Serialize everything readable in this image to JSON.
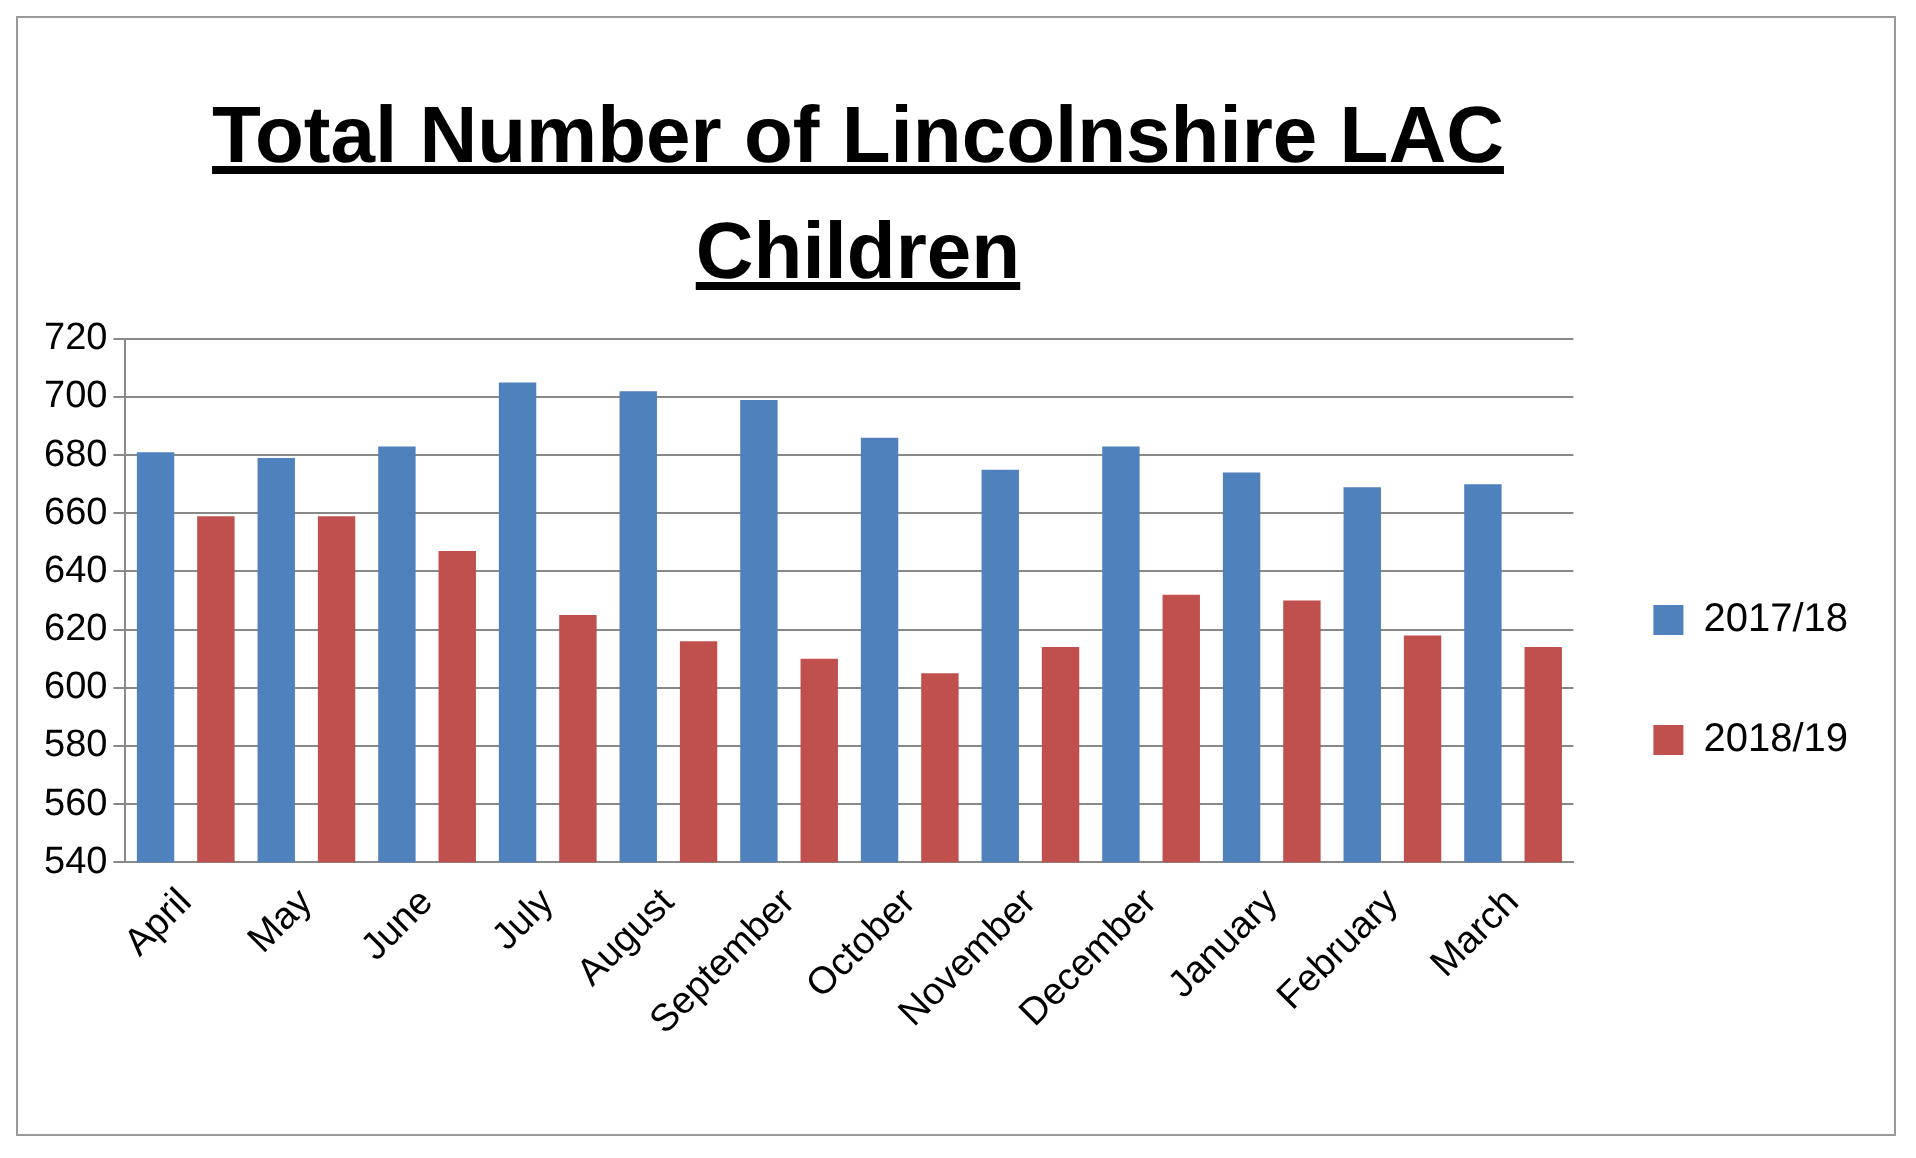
{
  "chart_data": {
    "type": "bar",
    "title": "Total Number of Lincolnshire LAC Children",
    "categories": [
      "April",
      "May",
      "June",
      "July",
      "August",
      "September",
      "October",
      "November",
      "December",
      "January",
      "February",
      "March"
    ],
    "series": [
      {
        "name": "2017/18",
        "color": "#4f81bd",
        "values": [
          681,
          679,
          683,
          705,
          702,
          699,
          686,
          675,
          683,
          674,
          669,
          670
        ]
      },
      {
        "name": "2018/19",
        "color": "#c0504d",
        "values": [
          659,
          659,
          647,
          625,
          616,
          610,
          605,
          614,
          632,
          630,
          618,
          614
        ]
      }
    ],
    "ylim": [
      540,
      720
    ],
    "yticks": [
      540,
      560,
      580,
      600,
      620,
      640,
      660,
      680,
      700,
      720
    ],
    "grid": "y",
    "legend": "right"
  }
}
